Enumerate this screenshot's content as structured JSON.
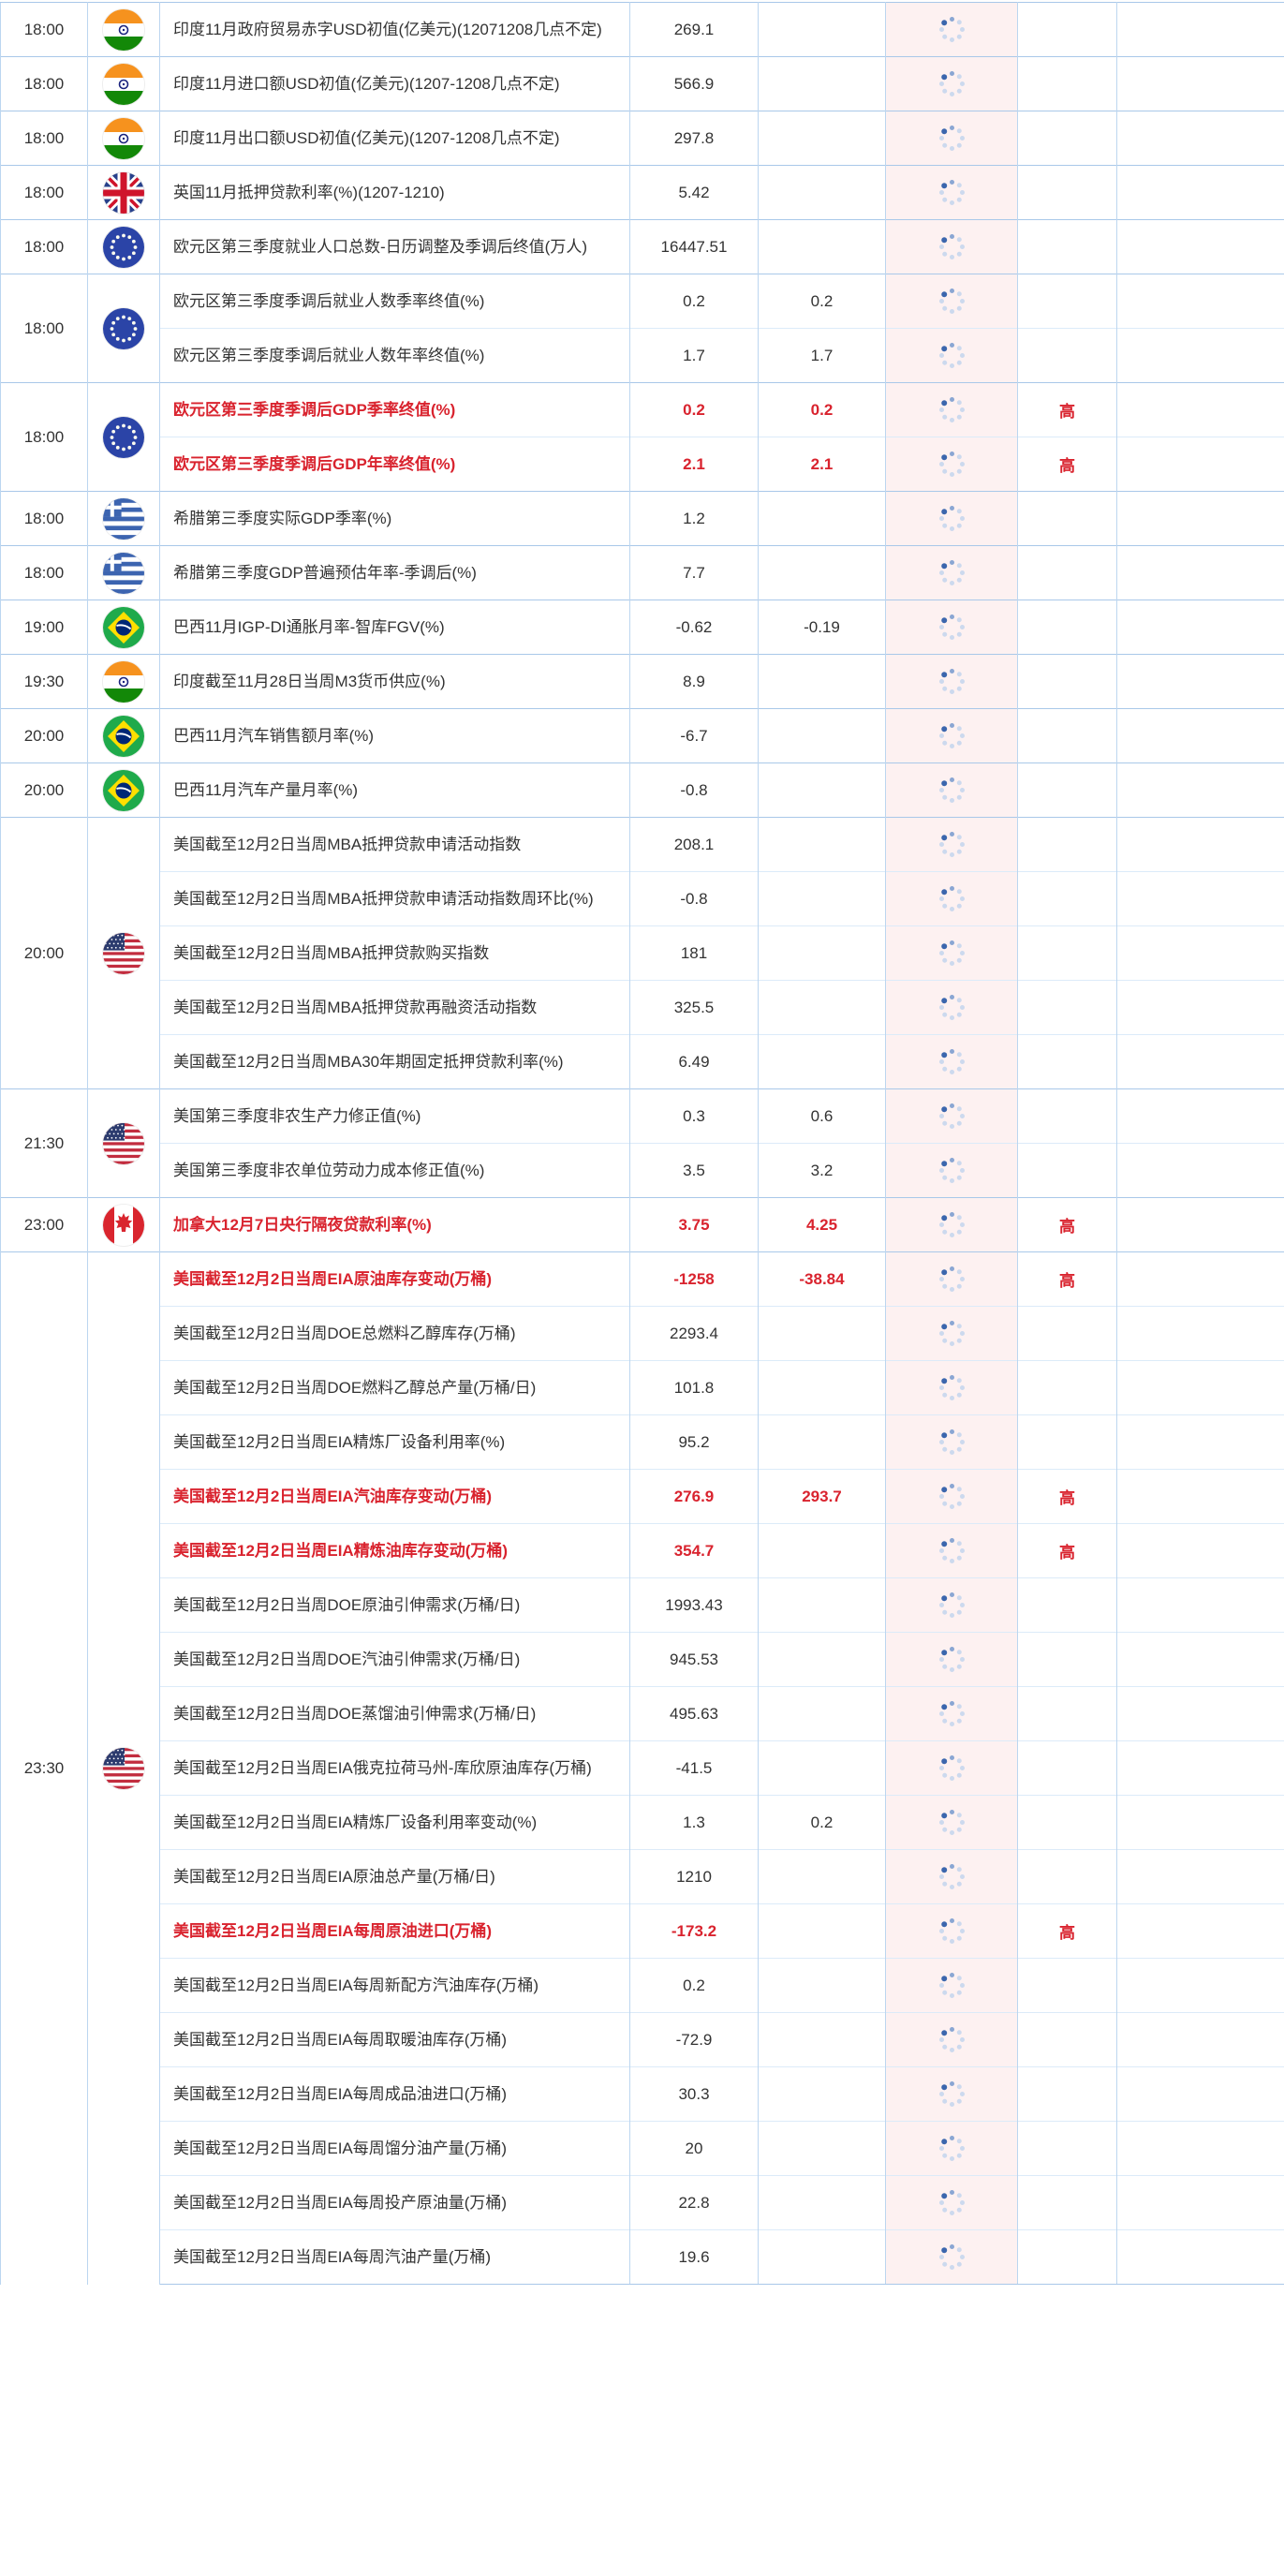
{
  "palette": {
    "highlight_red": "#d9232e",
    "text": "#333333",
    "grid_border": "#a9c8e9",
    "grid_border_light": "#dcebf9",
    "spinner_column_bg": "#fdf1f1",
    "spinner_dark": "#3b66ad",
    "spinner_mid": "#8aa6d3",
    "spinner_light": "#ccd9ee"
  },
  "icons": {
    "spinner": "loading-spinner-icon",
    "flags": {
      "india": "india-flag-icon",
      "uk": "uk-flag-icon",
      "eu": "eu-flag-icon",
      "greece": "greece-flag-icon",
      "brazil": "brazil-flag-icon",
      "canada": "canada-flag-icon",
      "us": "us-flag-icon"
    }
  },
  "calendar": {
    "importance_high_label": "高",
    "groups": [
      {
        "time": "18:00",
        "flag": "india",
        "rows": [
          {
            "desc": "印度11月政府贸易赤字USD初值(亿美元)(12071208几点不定)",
            "actual": "269.1",
            "forecast": "",
            "importance": "",
            "red": false
          }
        ]
      },
      {
        "time": "18:00",
        "flag": "india",
        "rows": [
          {
            "desc": "印度11月进口额USD初值(亿美元)(1207-1208几点不定)",
            "actual": "566.9",
            "forecast": "",
            "importance": "",
            "red": false
          }
        ]
      },
      {
        "time": "18:00",
        "flag": "india",
        "rows": [
          {
            "desc": "印度11月出口额USD初值(亿美元)(1207-1208几点不定)",
            "actual": "297.8",
            "forecast": "",
            "importance": "",
            "red": false
          }
        ]
      },
      {
        "time": "18:00",
        "flag": "uk",
        "rows": [
          {
            "desc": "英国11月抵押贷款利率(%)(1207-1210)",
            "actual": "5.42",
            "forecast": "",
            "importance": "",
            "red": false
          }
        ]
      },
      {
        "time": "18:00",
        "flag": "eu",
        "rows": [
          {
            "desc": "欧元区第三季度就业人口总数-日历调整及季调后终值(万人)",
            "actual": "16447.51",
            "forecast": "",
            "importance": "",
            "red": false
          }
        ]
      },
      {
        "time": "18:00",
        "flag": "eu",
        "rows": [
          {
            "desc": "欧元区第三季度季调后就业人数季率终值(%)",
            "actual": "0.2",
            "forecast": "0.2",
            "importance": "",
            "red": false
          },
          {
            "desc": "欧元区第三季度季调后就业人数年率终值(%)",
            "actual": "1.7",
            "forecast": "1.7",
            "importance": "",
            "red": false
          }
        ]
      },
      {
        "time": "18:00",
        "flag": "eu",
        "rows": [
          {
            "desc": "欧元区第三季度季调后GDP季率终值(%)",
            "actual": "0.2",
            "forecast": "0.2",
            "importance": "高",
            "red": true
          },
          {
            "desc": "欧元区第三季度季调后GDP年率终值(%)",
            "actual": "2.1",
            "forecast": "2.1",
            "importance": "高",
            "red": true
          }
        ]
      },
      {
        "time": "18:00",
        "flag": "greece",
        "rows": [
          {
            "desc": "希腊第三季度实际GDP季率(%)",
            "actual": "1.2",
            "forecast": "",
            "importance": "",
            "red": false
          }
        ]
      },
      {
        "time": "18:00",
        "flag": "greece",
        "rows": [
          {
            "desc": "希腊第三季度GDP普遍预估年率-季调后(%)",
            "actual": "7.7",
            "forecast": "",
            "importance": "",
            "red": false
          }
        ]
      },
      {
        "time": "19:00",
        "flag": "brazil",
        "rows": [
          {
            "desc": "巴西11月IGP-DI通胀月率-智库FGV(%)",
            "actual": "-0.62",
            "forecast": "-0.19",
            "importance": "",
            "red": false
          }
        ]
      },
      {
        "time": "19:30",
        "flag": "india",
        "rows": [
          {
            "desc": "印度截至11月28日当周M3货币供应(%)",
            "actual": "8.9",
            "forecast": "",
            "importance": "",
            "red": false
          }
        ]
      },
      {
        "time": "20:00",
        "flag": "brazil",
        "rows": [
          {
            "desc": "巴西11月汽车销售额月率(%)",
            "actual": "-6.7",
            "forecast": "",
            "importance": "",
            "red": false
          }
        ]
      },
      {
        "time": "20:00",
        "flag": "brazil",
        "rows": [
          {
            "desc": "巴西11月汽车产量月率(%)",
            "actual": "-0.8",
            "forecast": "",
            "importance": "",
            "red": false
          }
        ]
      },
      {
        "time": "20:00",
        "flag": "us",
        "rows": [
          {
            "desc": "美国截至12月2日当周MBA抵押贷款申请活动指数",
            "actual": "208.1",
            "forecast": "",
            "importance": "",
            "red": false
          },
          {
            "desc": "美国截至12月2日当周MBA抵押贷款申请活动指数周环比(%)",
            "actual": "-0.8",
            "forecast": "",
            "importance": "",
            "red": false
          },
          {
            "desc": "美国截至12月2日当周MBA抵押贷款购买指数",
            "actual": "181",
            "forecast": "",
            "importance": "",
            "red": false
          },
          {
            "desc": "美国截至12月2日当周MBA抵押贷款再融资活动指数",
            "actual": "325.5",
            "forecast": "",
            "importance": "",
            "red": false
          },
          {
            "desc": "美国截至12月2日当周MBA30年期固定抵押贷款利率(%)",
            "actual": "6.49",
            "forecast": "",
            "importance": "",
            "red": false
          }
        ]
      },
      {
        "time": "21:30",
        "flag": "us",
        "rows": [
          {
            "desc": "美国第三季度非农生产力修正值(%)",
            "actual": "0.3",
            "forecast": "0.6",
            "importance": "",
            "red": false
          },
          {
            "desc": "美国第三季度非农单位劳动力成本修正值(%)",
            "actual": "3.5",
            "forecast": "3.2",
            "importance": "",
            "red": false
          }
        ]
      },
      {
        "time": "23:00",
        "flag": "canada",
        "rows": [
          {
            "desc": "加拿大12月7日央行隔夜贷款利率(%)",
            "actual": "3.75",
            "forecast": "4.25",
            "importance": "高",
            "red": true
          }
        ]
      },
      {
        "time": "23:30",
        "flag": "us",
        "rows": [
          {
            "desc": "美国截至12月2日当周EIA原油库存变动(万桶)",
            "actual": "-1258",
            "forecast": "-38.84",
            "importance": "高",
            "red": true
          },
          {
            "desc": "美国截至12月2日当周DOE总燃料乙醇库存(万桶)",
            "actual": "2293.4",
            "forecast": "",
            "importance": "",
            "red": false
          },
          {
            "desc": "美国截至12月2日当周DOE燃料乙醇总产量(万桶/日)",
            "actual": "101.8",
            "forecast": "",
            "importance": "",
            "red": false
          },
          {
            "desc": "美国截至12月2日当周EIA精炼厂设备利用率(%)",
            "actual": "95.2",
            "forecast": "",
            "importance": "",
            "red": false
          },
          {
            "desc": "美国截至12月2日当周EIA汽油库存变动(万桶)",
            "actual": "276.9",
            "forecast": "293.7",
            "importance": "高",
            "red": true
          },
          {
            "desc": "美国截至12月2日当周EIA精炼油库存变动(万桶)",
            "actual": "354.7",
            "forecast": "",
            "importance": "高",
            "red": true
          },
          {
            "desc": "美国截至12月2日当周DOE原油引伸需求(万桶/日)",
            "actual": "1993.43",
            "forecast": "",
            "importance": "",
            "red": false
          },
          {
            "desc": "美国截至12月2日当周DOE汽油引伸需求(万桶/日)",
            "actual": "945.53",
            "forecast": "",
            "importance": "",
            "red": false
          },
          {
            "desc": "美国截至12月2日当周DOE蒸馏油引伸需求(万桶/日)",
            "actual": "495.63",
            "forecast": "",
            "importance": "",
            "red": false
          },
          {
            "desc": "美国截至12月2日当周EIA俄克拉荷马州-库欣原油库存(万桶)",
            "actual": "-41.5",
            "forecast": "",
            "importance": "",
            "red": false
          },
          {
            "desc": "美国截至12月2日当周EIA精炼厂设备利用率变动(%)",
            "actual": "1.3",
            "forecast": "0.2",
            "importance": "",
            "red": false
          },
          {
            "desc": "美国截至12月2日当周EIA原油总产量(万桶/日)",
            "actual": "1210",
            "forecast": "",
            "importance": "",
            "red": false
          },
          {
            "desc": "美国截至12月2日当周EIA每周原油进口(万桶)",
            "actual": "-173.2",
            "forecast": "",
            "importance": "高",
            "red": true
          },
          {
            "desc": "美国截至12月2日当周EIA每周新配方汽油库存(万桶)",
            "actual": "0.2",
            "forecast": "",
            "importance": "",
            "red": false
          },
          {
            "desc": "美国截至12月2日当周EIA每周取暖油库存(万桶)",
            "actual": "-72.9",
            "forecast": "",
            "importance": "",
            "red": false
          },
          {
            "desc": "美国截至12月2日当周EIA每周成品油进口(万桶)",
            "actual": "30.3",
            "forecast": "",
            "importance": "",
            "red": false
          },
          {
            "desc": "美国截至12月2日当周EIA每周馏分油产量(万桶)",
            "actual": "20",
            "forecast": "",
            "importance": "",
            "red": false
          },
          {
            "desc": "美国截至12月2日当周EIA每周投产原油量(万桶)",
            "actual": "22.8",
            "forecast": "",
            "importance": "",
            "red": false
          },
          {
            "desc": "美国截至12月2日当周EIA每周汽油产量(万桶)",
            "actual": "19.6",
            "forecast": "",
            "importance": "",
            "red": false
          }
        ]
      }
    ]
  }
}
